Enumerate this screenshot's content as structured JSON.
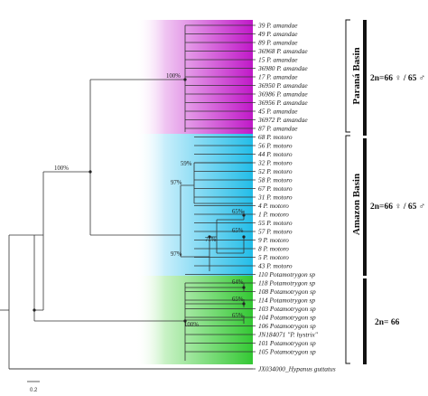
{
  "taxa": [
    "39 P. amandae",
    "49 P. amandae",
    "89 P. amandae",
    "36968 P. amandae",
    "15 P. amandae",
    "36980 P. amandae",
    "17 P. amandae",
    "36950 P. amandae",
    "36986 P. amandae",
    "36956 P. amandae",
    "45 P. amandae",
    "36972 P. amandae",
    "87 P. amandae",
    "68 P. motoro",
    "56 P. motoro",
    "44 P. motoro",
    "32 P. motoro",
    "52 P. motoro",
    "58 P. motoro",
    "67 P. motoro",
    "31 P. motoro",
    "4 P. motoro",
    "1 P. motoro",
    "55 P. motoro",
    "57 P. motoro",
    "9 P. motoro",
    "8 P. motoro",
    "5 P. motoro",
    "43 P. motoro",
    "110 Potamotrygon sp",
    "118 Potamotrygon sp",
    "108 Potamotrygon sp",
    "114 Potamotrygon sp",
    "103 Potamotrygon sp",
    "104 Potamotrygon sp",
    "106 Potamotrygon sp",
    "JN184071 \"P. hystrix\"",
    "101 Potamotrygon sp",
    "105 Potamotrygon sp",
    "JX034000_Hypanus guttatus"
  ],
  "bootstrap": {
    "amandae_clade": "100%",
    "parana_amazon": "100%",
    "motoro_upper": "59%",
    "motoro_mid": "97%",
    "motoro_sub_a": "65%",
    "motoro_sub_b": "65%",
    "motoro_sub_c": "71%",
    "motoro_lower": "97%",
    "sp_a": "64%",
    "sp_b": "65%",
    "sp_c": "65%",
    "sp_clade": "100%"
  },
  "basins": {
    "parana": "Paraná Basin",
    "amazon": "Amazon Basin"
  },
  "karyotypes": {
    "parana": "2n=66 ♀ / 65 ♂",
    "amazon": "2n=66 ♀ / 65 ♂",
    "sp": "2n= 66"
  },
  "scale_bar": "0.2",
  "colors": {
    "amandae": "#c018c8",
    "motoro": "#22bde8",
    "sp": "#33c833"
  }
}
